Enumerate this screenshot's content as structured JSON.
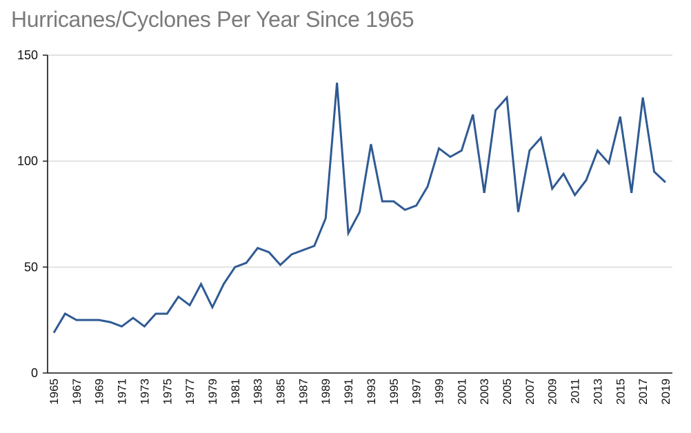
{
  "chart_data": {
    "type": "line",
    "title": "Hurricanes/Cyclones Per Year Since 1965",
    "xlabel": "",
    "ylabel": "",
    "ylim": [
      0,
      150
    ],
    "yticks": [
      0,
      50,
      100,
      150
    ],
    "grid": true,
    "x": [
      1965,
      1966,
      1967,
      1968,
      1969,
      1970,
      1971,
      1972,
      1973,
      1974,
      1975,
      1976,
      1977,
      1978,
      1979,
      1980,
      1981,
      1982,
      1983,
      1984,
      1985,
      1986,
      1987,
      1988,
      1989,
      1990,
      1991,
      1992,
      1993,
      1994,
      1995,
      1996,
      1997,
      1998,
      1999,
      2000,
      2001,
      2002,
      2003,
      2004,
      2005,
      2006,
      2007,
      2008,
      2009,
      2010,
      2011,
      2012,
      2013,
      2014,
      2015,
      2016,
      2017,
      2018,
      2019
    ],
    "x_tick_labels": [
      "1965",
      "1967",
      "1969",
      "1971",
      "1973",
      "1975",
      "1977",
      "1979",
      "1981",
      "1983",
      "1985",
      "1987",
      "1989",
      "1991",
      "1993",
      "1995",
      "1997",
      "1999",
      "2001",
      "2003",
      "2005",
      "2007",
      "2009",
      "2011",
      "2013",
      "2015",
      "2017",
      "2019"
    ],
    "series": [
      {
        "color": "#2f5a93",
        "values": [
          19,
          28,
          25,
          25,
          25,
          24,
          22,
          26,
          22,
          28,
          28,
          36,
          32,
          42,
          31,
          42,
          50,
          52,
          59,
          57,
          51,
          56,
          58,
          60,
          73,
          137,
          66,
          76,
          108,
          81,
          81,
          77,
          79,
          88,
          106,
          102,
          105,
          122,
          85,
          124,
          130,
          76,
          105,
          111,
          87,
          94,
          84,
          91,
          105,
          99,
          121,
          85,
          130,
          95,
          90
        ]
      }
    ]
  }
}
